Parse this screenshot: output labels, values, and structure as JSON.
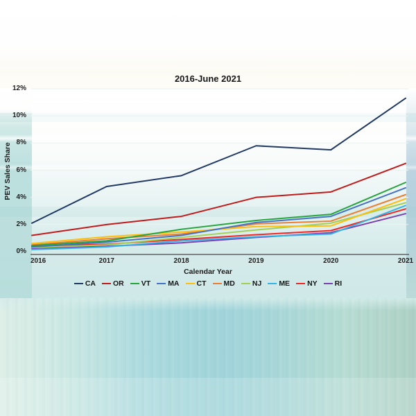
{
  "chart_data": {
    "type": "line",
    "title": "2016-June 2021",
    "xlabel": "Calendar Year",
    "ylabel": "PEV Sales Share",
    "x": [
      2016,
      2017,
      2018,
      2019,
      2020,
      2021
    ],
    "xlim": [
      2016,
      2021
    ],
    "ylim": [
      0,
      12
    ],
    "yticks": [
      0,
      2,
      4,
      6,
      8,
      10,
      12
    ],
    "ytick_labels": [
      "0%",
      "2%",
      "4%",
      "6%",
      "8%",
      "10%",
      "12%"
    ],
    "grid": true,
    "legend_position": "bottom",
    "series": [
      {
        "name": "CA",
        "color": "#203864",
        "values": [
          2.1,
          4.8,
          5.6,
          7.8,
          7.5,
          11.3
        ]
      },
      {
        "name": "OR",
        "color": "#c11a1a",
        "values": [
          1.2,
          2.0,
          2.6,
          4.0,
          4.4,
          6.5
        ]
      },
      {
        "name": "VT",
        "color": "#26a43c",
        "values": [
          0.45,
          0.8,
          1.65,
          2.3,
          2.75,
          5.1
        ]
      },
      {
        "name": "MA",
        "color": "#4472c4",
        "values": [
          0.35,
          0.7,
          1.2,
          2.15,
          2.6,
          4.7
        ]
      },
      {
        "name": "CT",
        "color": "#fdbe0e",
        "values": [
          0.6,
          1.1,
          1.45,
          1.85,
          1.9,
          3.9
        ]
      },
      {
        "name": "MD",
        "color": "#ed7d31",
        "values": [
          0.5,
          0.95,
          1.3,
          2.05,
          2.25,
          4.2
        ]
      },
      {
        "name": "NJ",
        "color": "#a3d054",
        "values": [
          0.3,
          0.5,
          1.05,
          1.6,
          2.1,
          3.6
        ]
      },
      {
        "name": "ME",
        "color": "#33b3e6",
        "values": [
          0.15,
          0.35,
          0.8,
          1.1,
          1.3,
          3.4
        ]
      },
      {
        "name": "NY",
        "color": "#f62323",
        "values": [
          0.4,
          0.55,
          0.9,
          1.25,
          1.55,
          3.15
        ]
      },
      {
        "name": "RI",
        "color": "#7a3fb0",
        "values": [
          0.25,
          0.4,
          0.65,
          1.05,
          1.4,
          2.8
        ]
      }
    ]
  }
}
